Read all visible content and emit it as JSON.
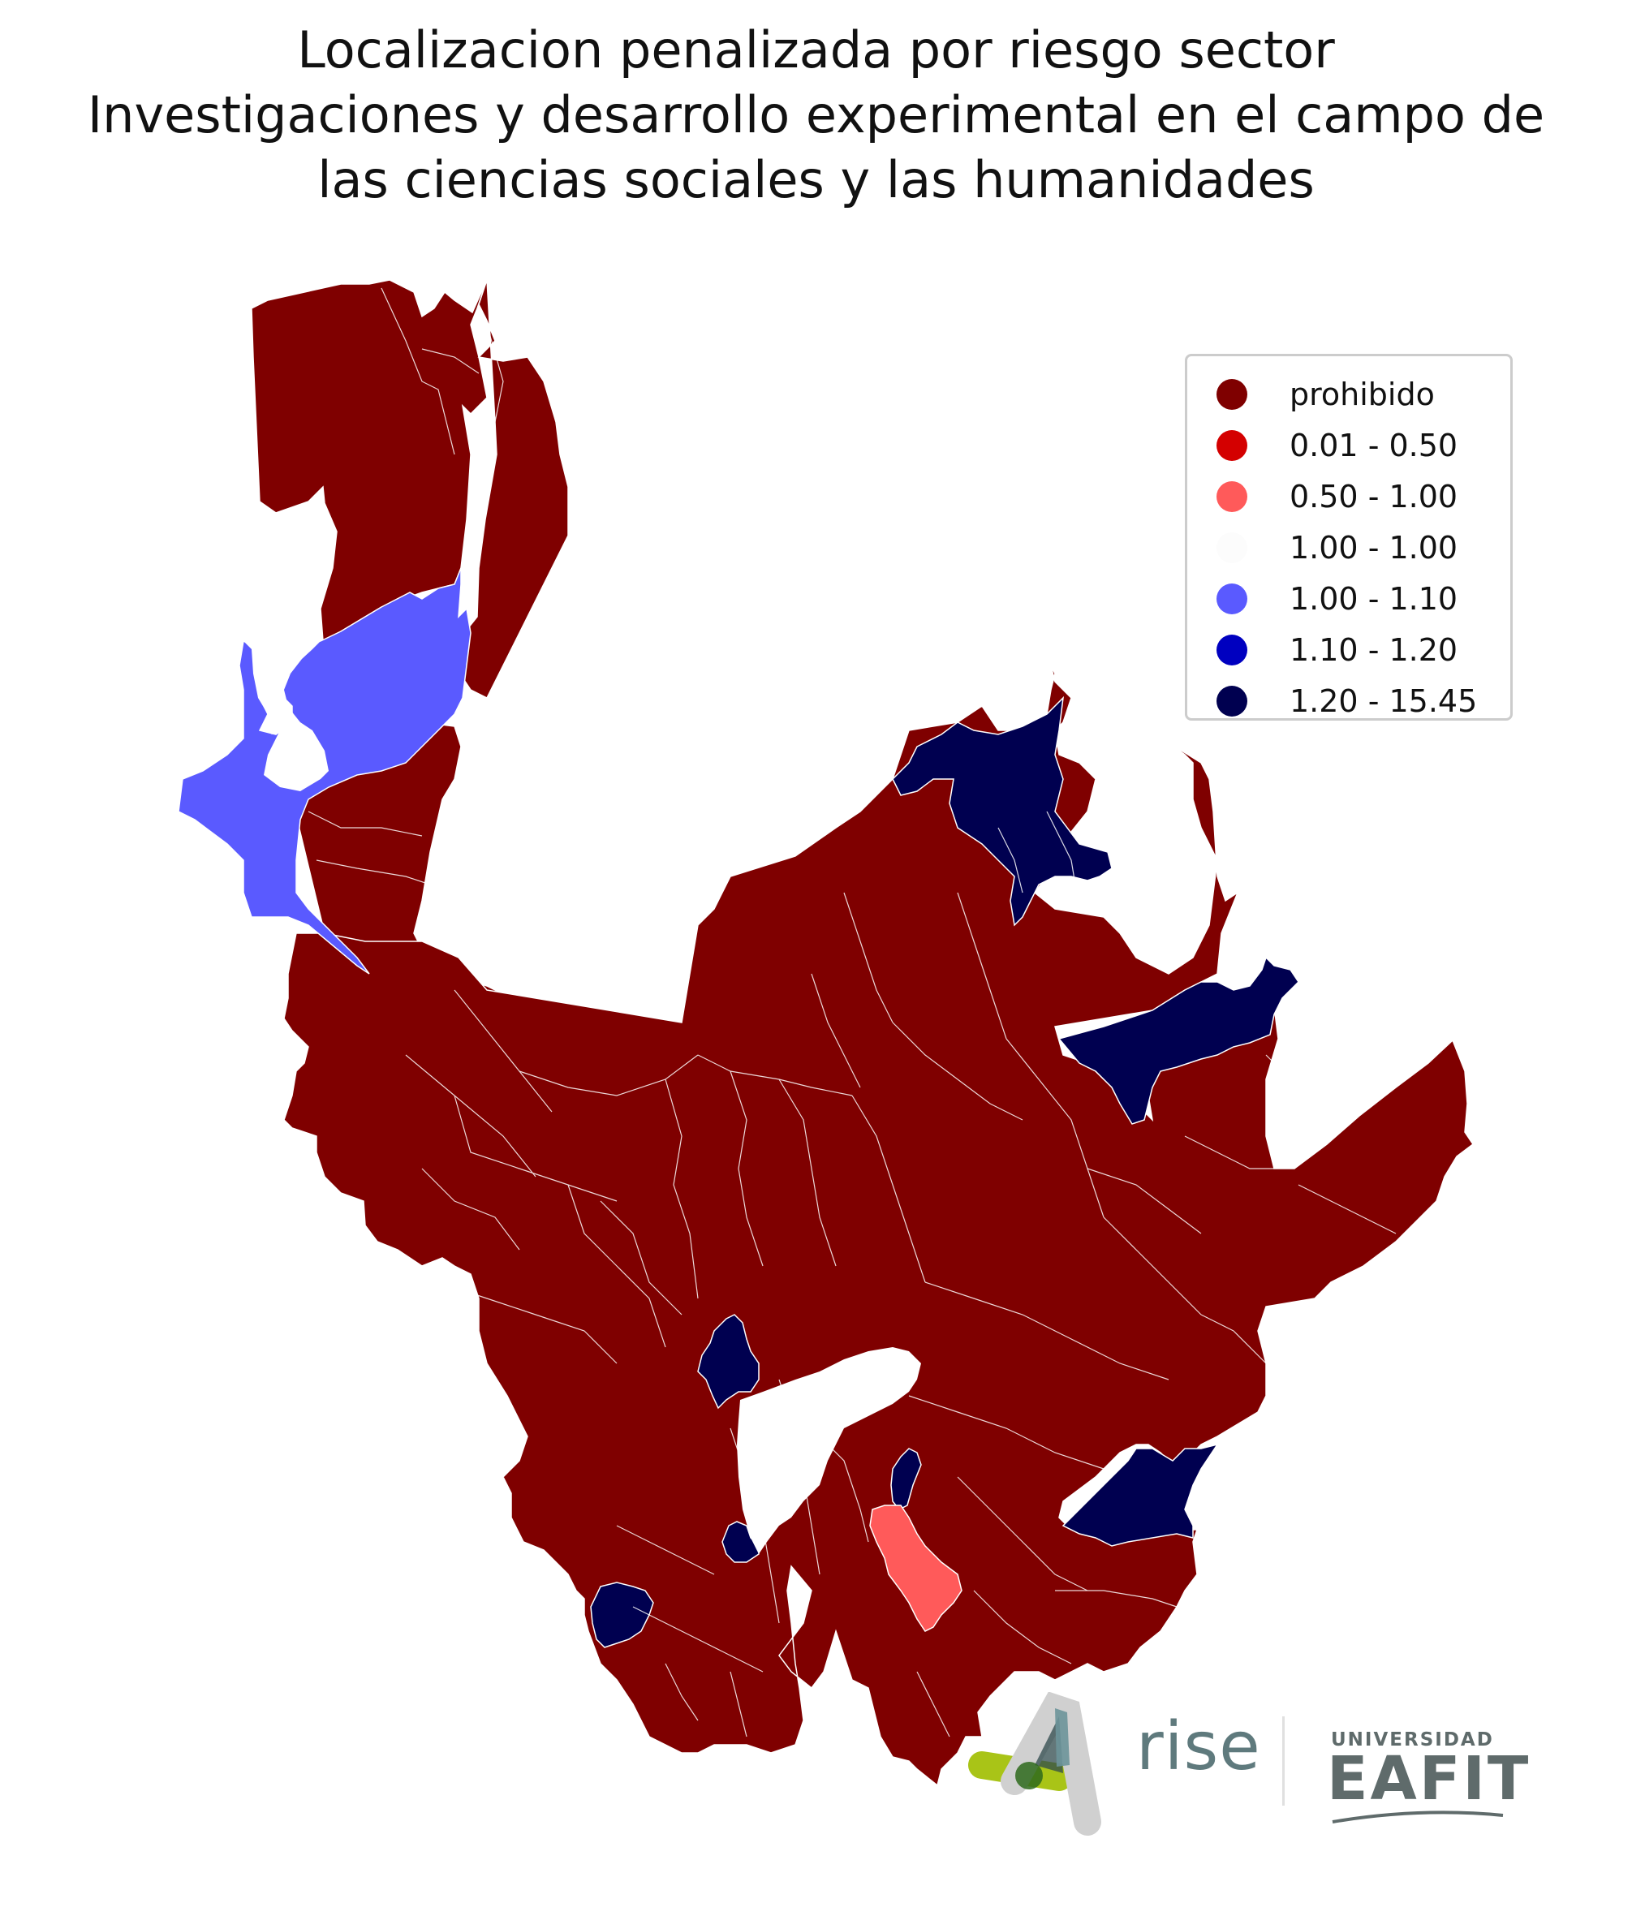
{
  "title_lines": [
    "Localizacion penalizada por riesgo sector",
    "Investigaciones y desarrollo experimental en el campo de",
    "las ciencias sociales y las humanidades"
  ],
  "legend": [
    {
      "label": "prohibido",
      "color": "#7f0000"
    },
    {
      "label": "0.01 - 0.50",
      "color": "#d40000"
    },
    {
      "label": "0.50 - 1.00",
      "color": "#ff5a5a"
    },
    {
      "label": "1.00 - 1.00",
      "color": "#fcfcfc"
    },
    {
      "label": "1.00 - 1.10",
      "color": "#5a5aff"
    },
    {
      "label": "1.10 - 1.20",
      "color": "#0000c0"
    },
    {
      "label": "1.20 - 15.45",
      "color": "#000050"
    }
  ],
  "colors": {
    "prohibido": "#7f0000",
    "light_blue": "#5a5aff",
    "navy": "#000050",
    "salmon": "#ff5a5a",
    "border": "#ffffff"
  },
  "logos": {
    "rise": "rise",
    "university_small": "UNIVERSIDAD",
    "university_main": "EAFIT"
  }
}
